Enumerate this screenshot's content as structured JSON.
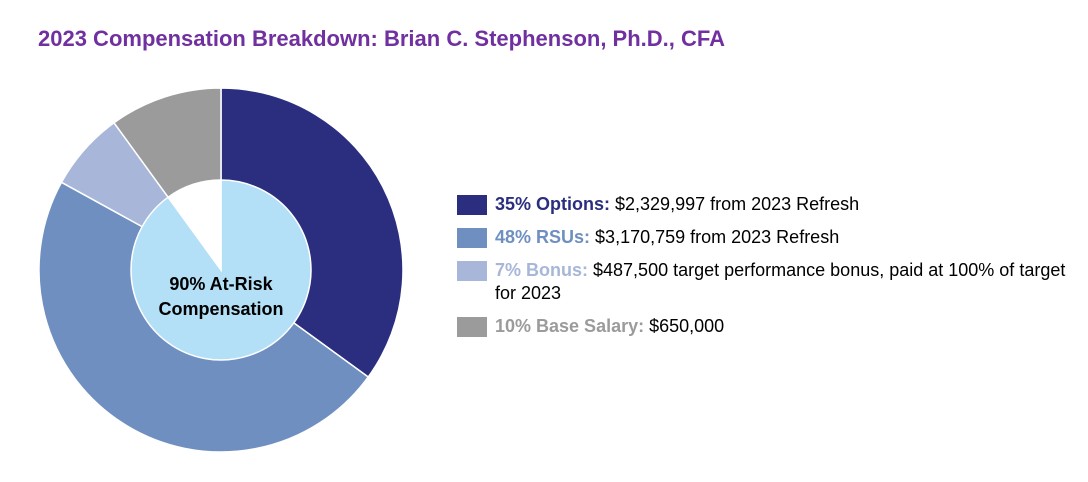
{
  "title": "2023 Compensation Breakdown: Brian C. Stephenson, Ph.D., CFA",
  "center_label": {
    "line1": "90% At-Risk",
    "line2": "Compensation"
  },
  "legend": [
    {
      "label": "35% Options:",
      "text": " $2,329,997 from 2023 Refresh",
      "color": "#2b2e7f"
    },
    {
      "label": "48% RSUs:",
      "text": " $3,170,759 from 2023 Refresh",
      "color": "#6f8fc0"
    },
    {
      "label": "7% Bonus:",
      "text": " $487,500 target performance bonus, paid at 100% of target for 2023",
      "color": "#a7b6d9"
    },
    {
      "label": "10% Base Salary:",
      "text": " $650,000",
      "color": "#9b9b9b"
    }
  ],
  "chart_data": {
    "type": "pie",
    "title": "2023 Compensation Breakdown: Brian C. Stephenson, Ph.D., CFA",
    "outer_ring": [
      {
        "name": "Options",
        "value": 35,
        "color": "#2b2e7f"
      },
      {
        "name": "RSUs",
        "value": 48,
        "color": "#6f8fc0"
      },
      {
        "name": "Bonus",
        "value": 7,
        "color": "#a7b6d9"
      },
      {
        "name": "Base Salary",
        "value": 10,
        "color": "#9b9b9b"
      }
    ],
    "inner_ring": [
      {
        "name": "At-Risk",
        "value": 90,
        "color": "#b3e0f6"
      },
      {
        "name": "Base Salary",
        "value": 10,
        "color": "#ffffff"
      }
    ],
    "legend_position": "right"
  }
}
